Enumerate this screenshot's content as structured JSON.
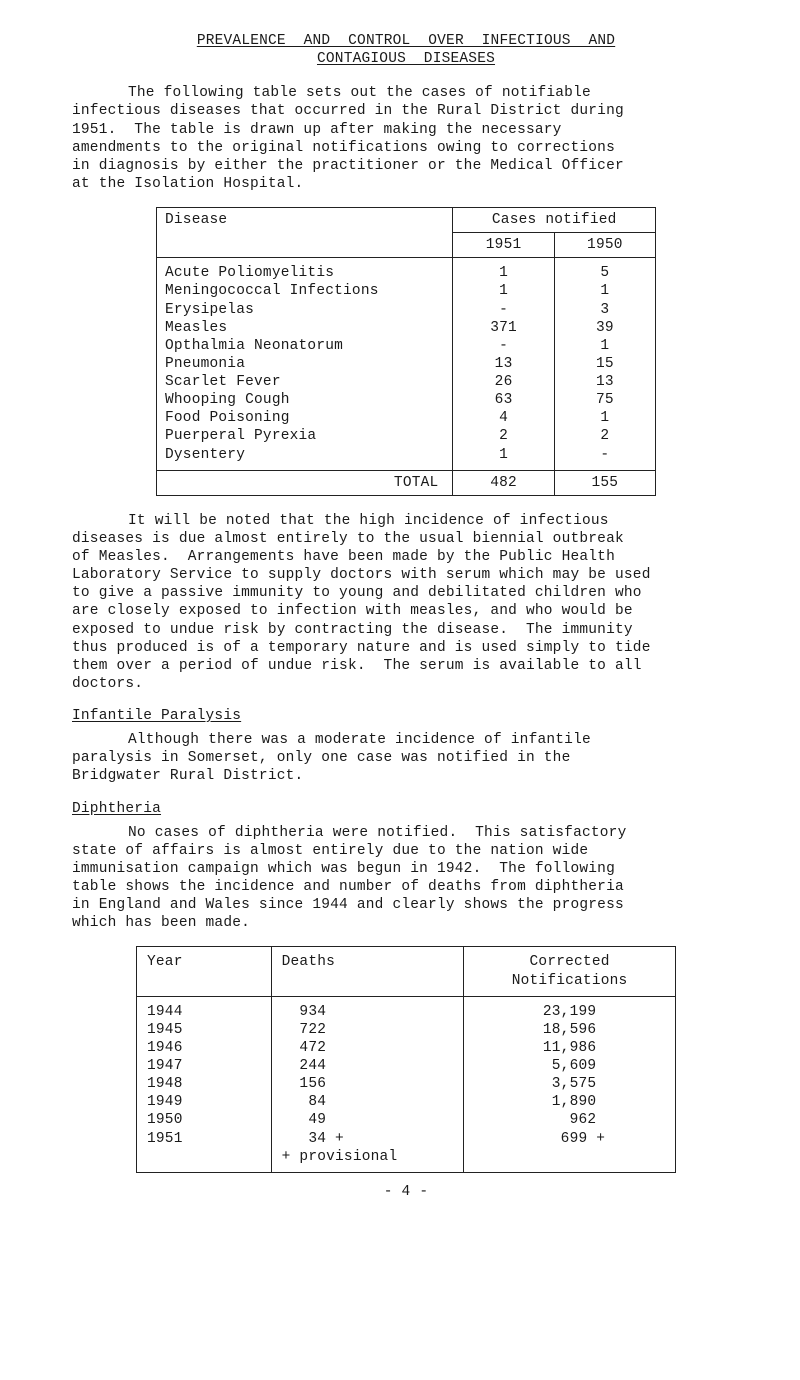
{
  "title": {
    "line1": "PREVALENCE  AND  CONTROL  OVER  INFECTIOUS  AND",
    "line2": "CONTAGIOUS  DISEASES"
  },
  "intro": "The following table sets out the cases of notifiable\ninfectious diseases that occurred in the Rural District during\n1951.  The table is drawn up after making the necessary\namendments to the original notifications owing to corrections\nin diagnosis by either the practitioner or the Medical Officer\nat the Isolation Hospital.",
  "table1": {
    "head_disease": "Disease",
    "head_notified": "Cases notified",
    "head_1951": "1951",
    "head_1950": "1950",
    "rows": [
      {
        "d": "Acute Poliomyelitis",
        "a": "1",
        "b": "5"
      },
      {
        "d": "Meningococcal Infections",
        "a": "1",
        "b": "1"
      },
      {
        "d": "Erysipelas",
        "a": "-",
        "b": "3"
      },
      {
        "d": "Measles",
        "a": "371",
        "b": "39"
      },
      {
        "d": "Opthalmia Neonatorum",
        "a": "-",
        "b": "1"
      },
      {
        "d": "Pneumonia",
        "a": "13",
        "b": "15"
      },
      {
        "d": "Scarlet Fever",
        "a": "26",
        "b": "13"
      },
      {
        "d": "Whooping Cough",
        "a": "63",
        "b": "75"
      },
      {
        "d": "Food Poisoning",
        "a": "4",
        "b": "1"
      },
      {
        "d": "Puerperal Pyrexia",
        "a": "2",
        "b": "2"
      },
      {
        "d": "Dysentery",
        "a": "1",
        "b": "-"
      }
    ],
    "total_label": "TOTAL",
    "total_a": "482",
    "total_b": "155"
  },
  "para2": "It will be noted that the high incidence of infectious\ndiseases is due almost entirely to the usual biennial outbreak\nof Measles.  Arrangements have been made by the Public Health\nLaboratory Service to supply doctors with serum which may be used\nto give a passive immunity to young and debilitated children who\nare closely exposed to infection with measles, and who would be\nexposed to undue risk by contracting the disease.  The immunity\nthus produced is of a temporary nature and is used simply to tide\nthem over a period of undue risk.  The serum is available to all\ndoctors.",
  "sec_infantile": "Infantile Paralysis",
  "para_infantile": "Although there was a moderate incidence of infantile\nparalysis in Somerset, only one case was notified in the\nBridgwater Rural District.",
  "sec_diph": "Diphtheria",
  "para_diph": "No cases of diphtheria were notified.  This satisfactory\nstate of affairs is almost entirely due to the nation wide\nimmunisation campaign which was begun in 1942.  The following\ntable shows the incidence and number of deaths from diphtheria\nin England and Wales since 1944 and clearly shows the progress\nwhich has been made.",
  "table2": {
    "head_year": "Year",
    "head_deaths": "Deaths",
    "head_corr": "Corrected\nNotifications",
    "years": "1944\n1945\n1946\n1947\n1948\n1949\n1950\n1951",
    "deaths": "  934\n  722\n  472\n  244\n  156\n   84\n   49\n   34 +\n+ provisional",
    "corr": "23,199\n18,596\n11,986\n 5,609\n 3,575\n 1,890\n   962\n   699 +"
  },
  "footer": "- 4 -"
}
